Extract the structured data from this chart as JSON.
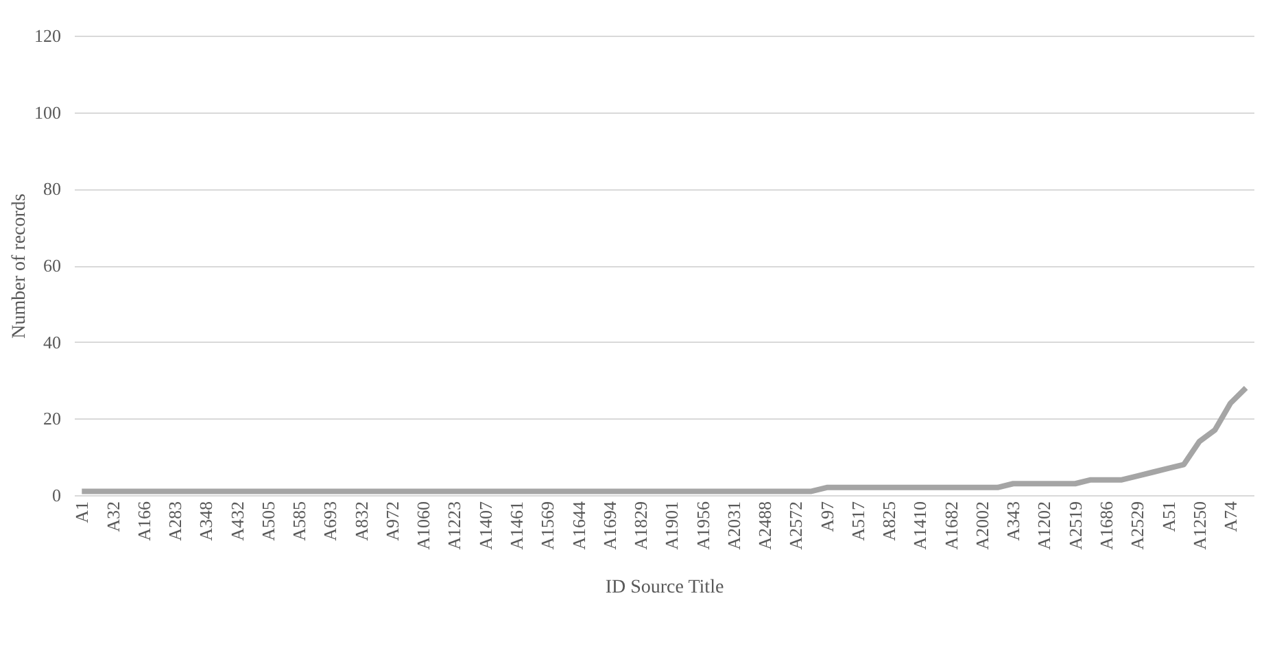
{
  "chart_data": {
    "type": "line",
    "xlabel": "ID Source Title",
    "ylabel": "Number of records",
    "categories": [
      "A1",
      null,
      "A32",
      null,
      "A166",
      null,
      "A283",
      null,
      "A348",
      null,
      "A432",
      null,
      "A505",
      null,
      "A585",
      null,
      "A693",
      null,
      "A832",
      null,
      "A972",
      null,
      "A1060",
      null,
      "A1223",
      null,
      "A1407",
      null,
      "A1461",
      null,
      "A1569",
      null,
      "A1644",
      null,
      "A1694",
      null,
      "A1829",
      null,
      "A1901",
      null,
      "A1956",
      null,
      "A2031",
      null,
      "A2488",
      null,
      "A2572",
      null,
      "A97",
      null,
      "A517",
      null,
      "A825",
      null,
      "A1410",
      null,
      "A1682",
      null,
      "A2002",
      null,
      "A343",
      null,
      "A1202",
      null,
      "A2519",
      null,
      "A1686",
      null,
      "A2529",
      null,
      "A51",
      null,
      "A1250",
      null,
      "A74",
      null
    ],
    "series": [
      {
        "color": "#a5a5a5",
        "values": [
          1,
          1,
          1,
          1,
          1,
          1,
          1,
          1,
          1,
          1,
          1,
          1,
          1,
          1,
          1,
          1,
          1,
          1,
          1,
          1,
          1,
          1,
          1,
          1,
          1,
          1,
          1,
          1,
          1,
          1,
          1,
          1,
          1,
          1,
          1,
          1,
          1,
          1,
          1,
          1,
          1,
          1,
          1,
          1,
          1,
          1,
          1,
          1,
          2,
          2,
          2,
          2,
          2,
          2,
          2,
          2,
          2,
          2,
          2,
          2,
          3,
          3,
          3,
          3,
          3,
          4,
          4,
          4,
          5,
          6,
          7,
          8,
          14,
          17,
          24,
          28
        ]
      }
    ],
    "ylim": [
      0,
      120
    ],
    "yticks": [
      0,
      20,
      40,
      60,
      80,
      100,
      120
    ],
    "grid": "y",
    "marker": "none",
    "line_style": "solid"
  }
}
